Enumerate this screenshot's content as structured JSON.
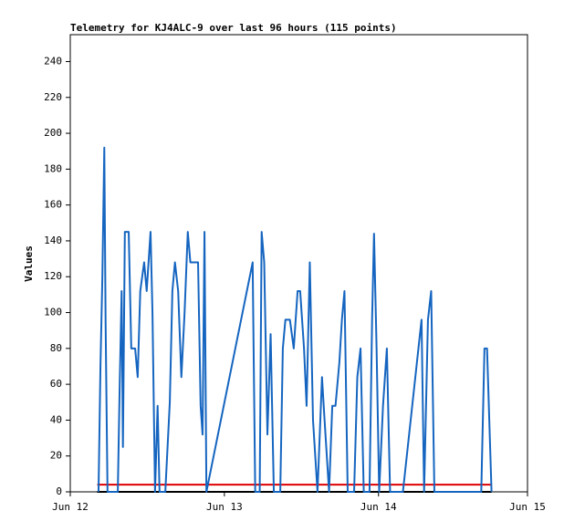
{
  "chart_data": {
    "type": "line",
    "title": "Telemetry for KJ4ALC-9 over last 96 hours (115 points)",
    "y_label": "Values",
    "xlim": [
      0,
      71.2
    ],
    "ylim": [
      0,
      255
    ],
    "xticks": [
      {
        "value": 0,
        "label": "Jun 12"
      },
      {
        "value": 24,
        "label": "Jun 13"
      },
      {
        "value": 48,
        "label": "Jun 14"
      },
      {
        "value": 71.2,
        "label": "Jun 15"
      }
    ],
    "yticks": [
      0,
      20,
      40,
      60,
      80,
      100,
      120,
      140,
      160,
      180,
      200,
      220,
      240
    ],
    "series": [
      {
        "color": "#000000",
        "x": [
          4.2,
          65.6
        ],
        "values": [
          0,
          0
        ]
      },
      {
        "color": "#e00000",
        "x": [
          4.2,
          65.6
        ],
        "values": [
          4,
          4
        ]
      },
      {
        "color": "#1565c0",
        "x": [
          4.4,
          4.7,
          5.0,
          5.3,
          5.5,
          5.8,
          7.4,
          7.7,
          8.0,
          8.2,
          8.5,
          9.1,
          9.5,
          10.1,
          10.5,
          10.9,
          11.5,
          11.9,
          12.5,
          12.8,
          13.2,
          13.6,
          13.9,
          14.8,
          15.5,
          15.9,
          16.3,
          16.8,
          17.3,
          17.8,
          18.3,
          18.7,
          19.9,
          20.3,
          20.6,
          20.9,
          21.2,
          28.4,
          28.8,
          29.5,
          29.8,
          30.2,
          30.7,
          31.2,
          31.7,
          32.7,
          33.1,
          33.5,
          34.2,
          34.8,
          35.4,
          35.8,
          36.4,
          36.8,
          37.1,
          37.3,
          37.8,
          38.5,
          39.2,
          39.6,
          40.3,
          40.8,
          41.3,
          41.9,
          42.3,
          42.7,
          43.2,
          44.2,
          44.7,
          45.2,
          45.7,
          46.6,
          47.0,
          47.3,
          47.7,
          48.1,
          48.7,
          49.3,
          49.8,
          51.8,
          54.7,
          55.1,
          55.7,
          56.2,
          56.7,
          64.0,
          64.5,
          64.9,
          65.6
        ],
        "values": [
          0,
          70,
          120,
          192,
          95,
          0,
          0,
          60,
          112,
          25,
          145,
          145,
          80,
          80,
          64,
          112,
          128,
          112,
          145,
          100,
          0,
          48,
          0,
          0,
          50,
          112,
          128,
          112,
          64,
          100,
          145,
          128,
          128,
          48,
          32,
          145,
          0,
          128,
          0,
          0,
          145,
          128,
          32,
          88,
          0,
          0,
          80,
          96,
          96,
          80,
          112,
          112,
          80,
          48,
          96,
          128,
          40,
          0,
          64,
          40,
          0,
          48,
          48,
          72,
          96,
          112,
          0,
          0,
          64,
          80,
          0,
          0,
          96,
          144,
          80,
          0,
          48,
          80,
          0,
          0,
          96,
          0,
          96,
          112,
          0,
          0,
          80,
          80,
          0
        ]
      }
    ]
  }
}
